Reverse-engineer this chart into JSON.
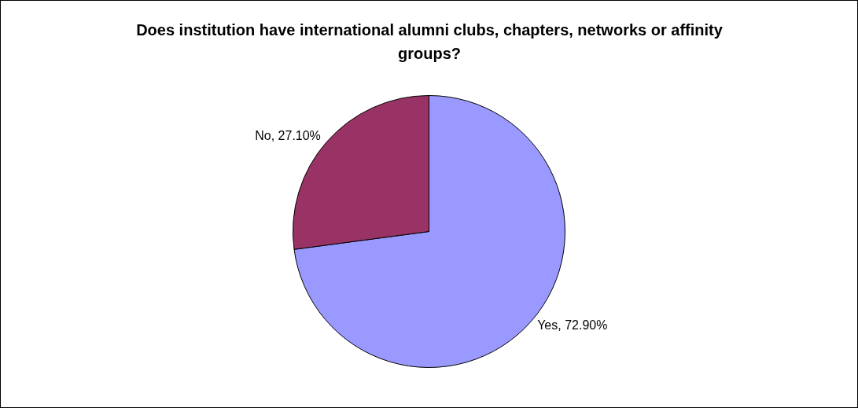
{
  "chart_data": {
    "type": "pie",
    "title": "Does institution have international alumni clubs, chapters, networks or affinity groups?",
    "categories": [
      "Yes",
      "No"
    ],
    "values": [
      72.9,
      27.1
    ],
    "colors": [
      "#9999ff",
      "#993366"
    ],
    "value_labels": [
      "72.90%",
      "27.10%"
    ],
    "legend": false
  }
}
